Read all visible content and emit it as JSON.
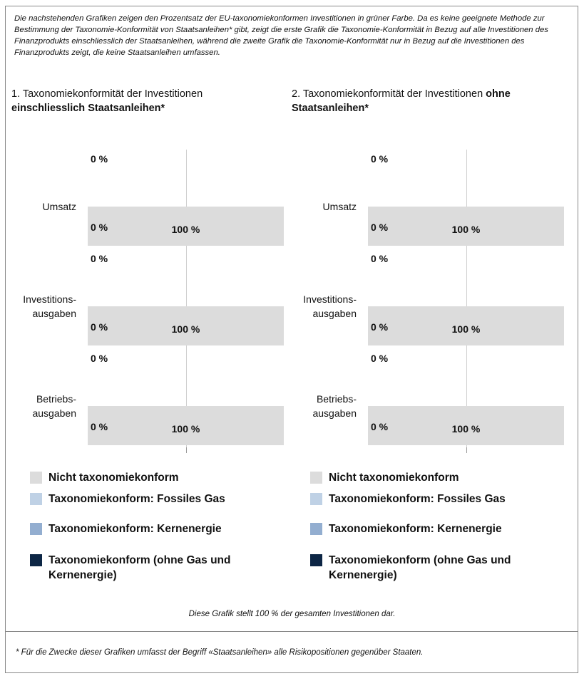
{
  "intro": "Die nachstehenden Grafiken zeigen den Prozentsatz der EU-taxonomiekonformen Investitionen in grüner Farbe. Da es keine geeignete Methode zur Bestimmung der Taxonomie-Konformität von Staatsanleihen* gibt, zeigt die erste Grafik die Taxonomie-Konformität in Bezug auf alle Investitionen des Finanzprodukts einschliesslich der Staatsanleihen, während die zweite Grafik die Taxonomie-Konformität nur in Bezug auf die Investitionen des Finanzprodukts zeigt, die keine Staatsanleihen umfassen.",
  "chart_data": [
    {
      "type": "bar",
      "title": "1. Taxonomiekonformität der Investitionen",
      "title_bold": "einschliesslich Staatsanleihen*",
      "categories": [
        "Umsatz",
        "Investitions-\nausgaben",
        "Betriebs-\nausgaben"
      ],
      "xlim": [
        0,
        100
      ],
      "top_row": {
        "values": [
          0,
          0,
          0
        ],
        "value_labels": [
          "0 %",
          "0 %",
          "0 %"
        ]
      },
      "series": [
        {
          "name": "Nicht taxonomiekonform",
          "color": "#dcdcdc",
          "values": [
            100,
            100,
            100
          ],
          "value_labels": [
            "100 %",
            "100 %",
            "100 %"
          ]
        },
        {
          "name": "Taxonomiekonform: Fossiles Gas",
          "color": "#bfd1e5"
        },
        {
          "name": "Taxonomiekonform: Kernenergie",
          "color": "#93aed0"
        },
        {
          "name": "Taxonomiekonform (ohne Gas und Kernenergie)",
          "color": "#0d2645",
          "values": [
            0,
            0,
            0
          ],
          "value_labels": [
            "0 %",
            "0 %",
            "0 %"
          ]
        }
      ]
    },
    {
      "type": "bar",
      "title": "2. Taxonomiekonformität der Investitionen",
      "title_bold": "ohne Staatsanleihen*",
      "categories": [
        "Umsatz",
        "Investitions-\nausgaben",
        "Betriebs-\nausgaben"
      ],
      "xlim": [
        0,
        100
      ],
      "top_row": {
        "values": [
          0,
          0,
          0
        ],
        "value_labels": [
          "0 %",
          "0 %",
          "0 %"
        ]
      },
      "series": [
        {
          "name": "Nicht taxonomiekonform",
          "color": "#dcdcdc",
          "values": [
            100,
            100,
            100
          ],
          "value_labels": [
            "100 %",
            "100 %",
            "100 %"
          ]
        },
        {
          "name": "Taxonomiekonform: Fossiles Gas",
          "color": "#bfd1e5"
        },
        {
          "name": "Taxonomiekonform: Kernenergie",
          "color": "#93aed0"
        },
        {
          "name": "Taxonomiekonform (ohne Gas und Kernenergie)",
          "color": "#0d2645",
          "values": [
            0,
            0,
            0
          ],
          "value_labels": [
            "0 %",
            "0 %",
            "0 %"
          ]
        }
      ]
    }
  ],
  "caption": "Diese Grafik stellt 100 % der gesamten Investitionen dar.",
  "footnote": "* Für die Zwecke dieser Grafiken umfasst der Begriff «Staatsanleihen» alle Risikopositionen gegenüber Staaten."
}
